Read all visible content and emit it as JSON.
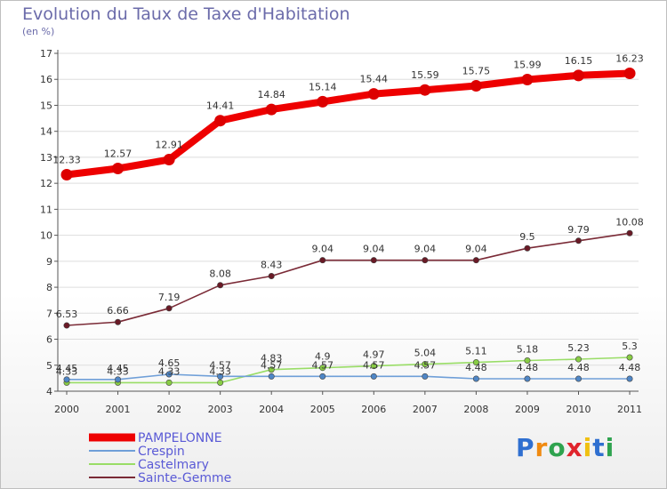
{
  "title": "Evolution du Taux de Taxe d'Habitation",
  "subtitle": "(en %)",
  "logo_text": "Proxiti",
  "colors": {
    "axis": "#555555",
    "grid": "#dddddd"
  },
  "chart_data": {
    "type": "line",
    "title": "Evolution du Taux de Taxe d'Habitation",
    "ylabel": "(en %)",
    "xlabel": "",
    "ylim": [
      4,
      17
    ],
    "yticks": [
      4,
      5,
      6,
      7,
      8,
      9,
      10,
      11,
      12,
      13,
      14,
      15,
      16,
      17
    ],
    "x": [
      "2000",
      "2001",
      "2002",
      "2003",
      "2004",
      "2005",
      "2006",
      "2007",
      "2008",
      "2009",
      "2010",
      "2011"
    ],
    "legend_position": "bottom-left",
    "series": [
      {
        "name": "PAMPELONNE",
        "color": "#ee0000",
        "marker": "#dd0000",
        "values": [
          12.33,
          12.57,
          12.91,
          14.41,
          14.84,
          15.14,
          15.44,
          15.59,
          15.75,
          15.99,
          16.15,
          16.23
        ],
        "labels": [
          "12.33",
          "12.57",
          "12.91",
          "14.41",
          "14.84",
          "15.14",
          "15.44",
          "15.59",
          "15.75",
          "15.99",
          "16.15",
          "16.23"
        ]
      },
      {
        "name": "Crespin",
        "color": "#6f9fd8",
        "marker": "#4f86c6",
        "values": [
          4.45,
          4.45,
          4.65,
          4.57,
          4.57,
          4.57,
          4.57,
          4.57,
          4.48,
          4.48,
          4.48,
          4.48
        ],
        "labels": [
          "4.45",
          "4.45",
          "4.65",
          "4.57",
          "4.57",
          "4.57",
          "4.57",
          "4.57",
          "4.48",
          "4.48",
          "4.48",
          "4.48"
        ]
      },
      {
        "name": "Castelmary",
        "color": "#99dd66",
        "marker": "#88cc44",
        "values": [
          4.33,
          4.33,
          4.33,
          4.33,
          4.83,
          4.9,
          4.97,
          5.04,
          5.11,
          5.18,
          5.23,
          5.3
        ],
        "labels": [
          "4.33",
          "4.33",
          "4.33",
          "4.33",
          "4.83",
          "4.9",
          "4.97",
          "5.04",
          "5.11",
          "5.18",
          "5.23",
          "5.3"
        ]
      },
      {
        "name": "Sainte-Gemme",
        "color": "#7a2a36",
        "marker": "#6a1a26",
        "values": [
          6.53,
          6.66,
          7.19,
          8.08,
          8.43,
          9.04,
          9.04,
          9.04,
          9.04,
          9.5,
          9.79,
          10.08
        ],
        "labels": [
          "6.53",
          "6.66",
          "7.19",
          "8.08",
          "8.43",
          "9.04",
          "9.04",
          "9.04",
          "9.04",
          "9.5",
          "9.79",
          "10.08"
        ]
      }
    ]
  }
}
